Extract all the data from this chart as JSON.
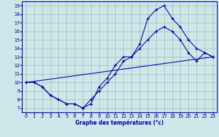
{
  "title": "Graphe des températures (°c)",
  "bg_color": "#cce8e8",
  "line_color": "#0000aa",
  "grid_color": "#99bbbb",
  "xlim": [
    -0.5,
    23.5
  ],
  "ylim": [
    6.5,
    19.5
  ],
  "xticks": [
    0,
    1,
    2,
    3,
    4,
    5,
    6,
    7,
    8,
    9,
    10,
    11,
    12,
    13,
    14,
    15,
    16,
    17,
    18,
    19,
    20,
    21,
    22,
    23
  ],
  "yticks": [
    7,
    8,
    9,
    10,
    11,
    12,
    13,
    14,
    15,
    16,
    17,
    18,
    19
  ],
  "line1_x": [
    0,
    1,
    2,
    3,
    4,
    5,
    6,
    7,
    8,
    9,
    10,
    11,
    12,
    13,
    14,
    15,
    16,
    17,
    18,
    19,
    20,
    21,
    22,
    23
  ],
  "line1_y": [
    10,
    10,
    9.5,
    8.5,
    8,
    7.5,
    7.5,
    7,
    7.5,
    9.5,
    10.5,
    12,
    13,
    13,
    14.5,
    17.5,
    18.5,
    19,
    17.5,
    16.5,
    15,
    14,
    13.5,
    13
  ],
  "line2_x": [
    0,
    1,
    2,
    3,
    4,
    5,
    6,
    7,
    8,
    9,
    10,
    11,
    12,
    13,
    14,
    15,
    16,
    17,
    18,
    19,
    20,
    21,
    22,
    23
  ],
  "line2_y": [
    10,
    10,
    9.5,
    8.5,
    8,
    7.5,
    7.5,
    7,
    8,
    9,
    10,
    11,
    12.5,
    13,
    14,
    15,
    16,
    16.5,
    16,
    15,
    13.5,
    12.5,
    13.5,
    13
  ],
  "line3_x": [
    0,
    23
  ],
  "line3_y": [
    10,
    13
  ]
}
